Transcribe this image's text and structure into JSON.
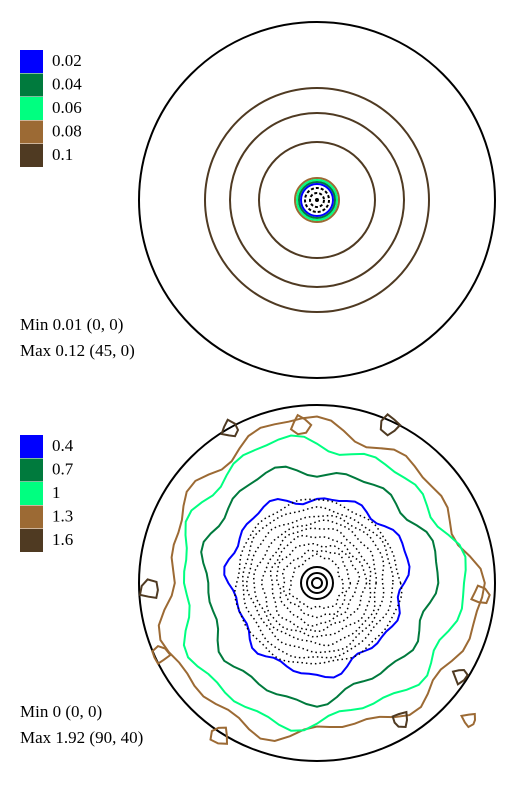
{
  "figures": [
    {
      "levels": [
        {
          "value": 0.02,
          "color": "#0000ff"
        },
        {
          "value": 0.04,
          "color": "#007a3d"
        },
        {
          "value": 0.06,
          "color": "#00ff80"
        },
        {
          "value": 0.08,
          "color": "#9c6a34"
        },
        {
          "value": 0.1,
          "color": "#4f3a22"
        }
      ],
      "min": "Min 0.01 (0, 0)",
      "max": "Max 0.12 (45, 0)"
    },
    {
      "levels": [
        {
          "value": 0.4,
          "color": "#0000ff"
        },
        {
          "value": 0.7,
          "color": "#007a3d"
        },
        {
          "value": 1,
          "color": "#00ff80"
        },
        {
          "value": 1.3,
          "color": "#9c6a34"
        },
        {
          "value": 1.6,
          "color": "#4f3a22"
        }
      ],
      "min": "Min 0 (0, 0)",
      "max": "Max 1.92 (90, 40)"
    }
  ]
}
